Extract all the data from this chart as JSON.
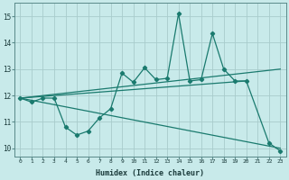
{
  "xlabel": "Humidex (Indice chaleur)",
  "bg_color": "#c8eaea",
  "line_color": "#1a7a6e",
  "grid_color": "#a8cccc",
  "xlim": [
    -0.5,
    23.5
  ],
  "ylim": [
    9.7,
    15.5
  ],
  "xticks": [
    0,
    1,
    2,
    3,
    4,
    5,
    6,
    7,
    8,
    9,
    10,
    11,
    12,
    13,
    14,
    15,
    16,
    17,
    18,
    19,
    20,
    21,
    22,
    23
  ],
  "yticks": [
    10,
    11,
    12,
    13,
    14,
    15
  ],
  "zigzag_x": [
    0,
    1,
    2,
    3,
    4,
    5,
    6,
    7,
    8,
    9,
    10,
    11,
    12,
    13,
    14,
    15,
    16,
    17,
    18,
    19,
    20,
    22,
    23
  ],
  "zigzag_y": [
    11.9,
    11.75,
    11.9,
    11.9,
    10.8,
    10.5,
    10.65,
    11.15,
    11.5,
    12.85,
    12.5,
    13.05,
    12.6,
    12.65,
    15.1,
    12.55,
    12.6,
    14.35,
    13.0,
    12.55,
    12.55,
    10.2,
    9.9
  ],
  "upper_trend_x": [
    0,
    23
  ],
  "upper_trend_y": [
    11.9,
    13.0
  ],
  "lower_trend_x": [
    0,
    23
  ],
  "lower_trend_y": [
    11.9,
    10.0
  ],
  "mid_trend_x": [
    0,
    20
  ],
  "mid_trend_y": [
    11.9,
    12.55
  ]
}
